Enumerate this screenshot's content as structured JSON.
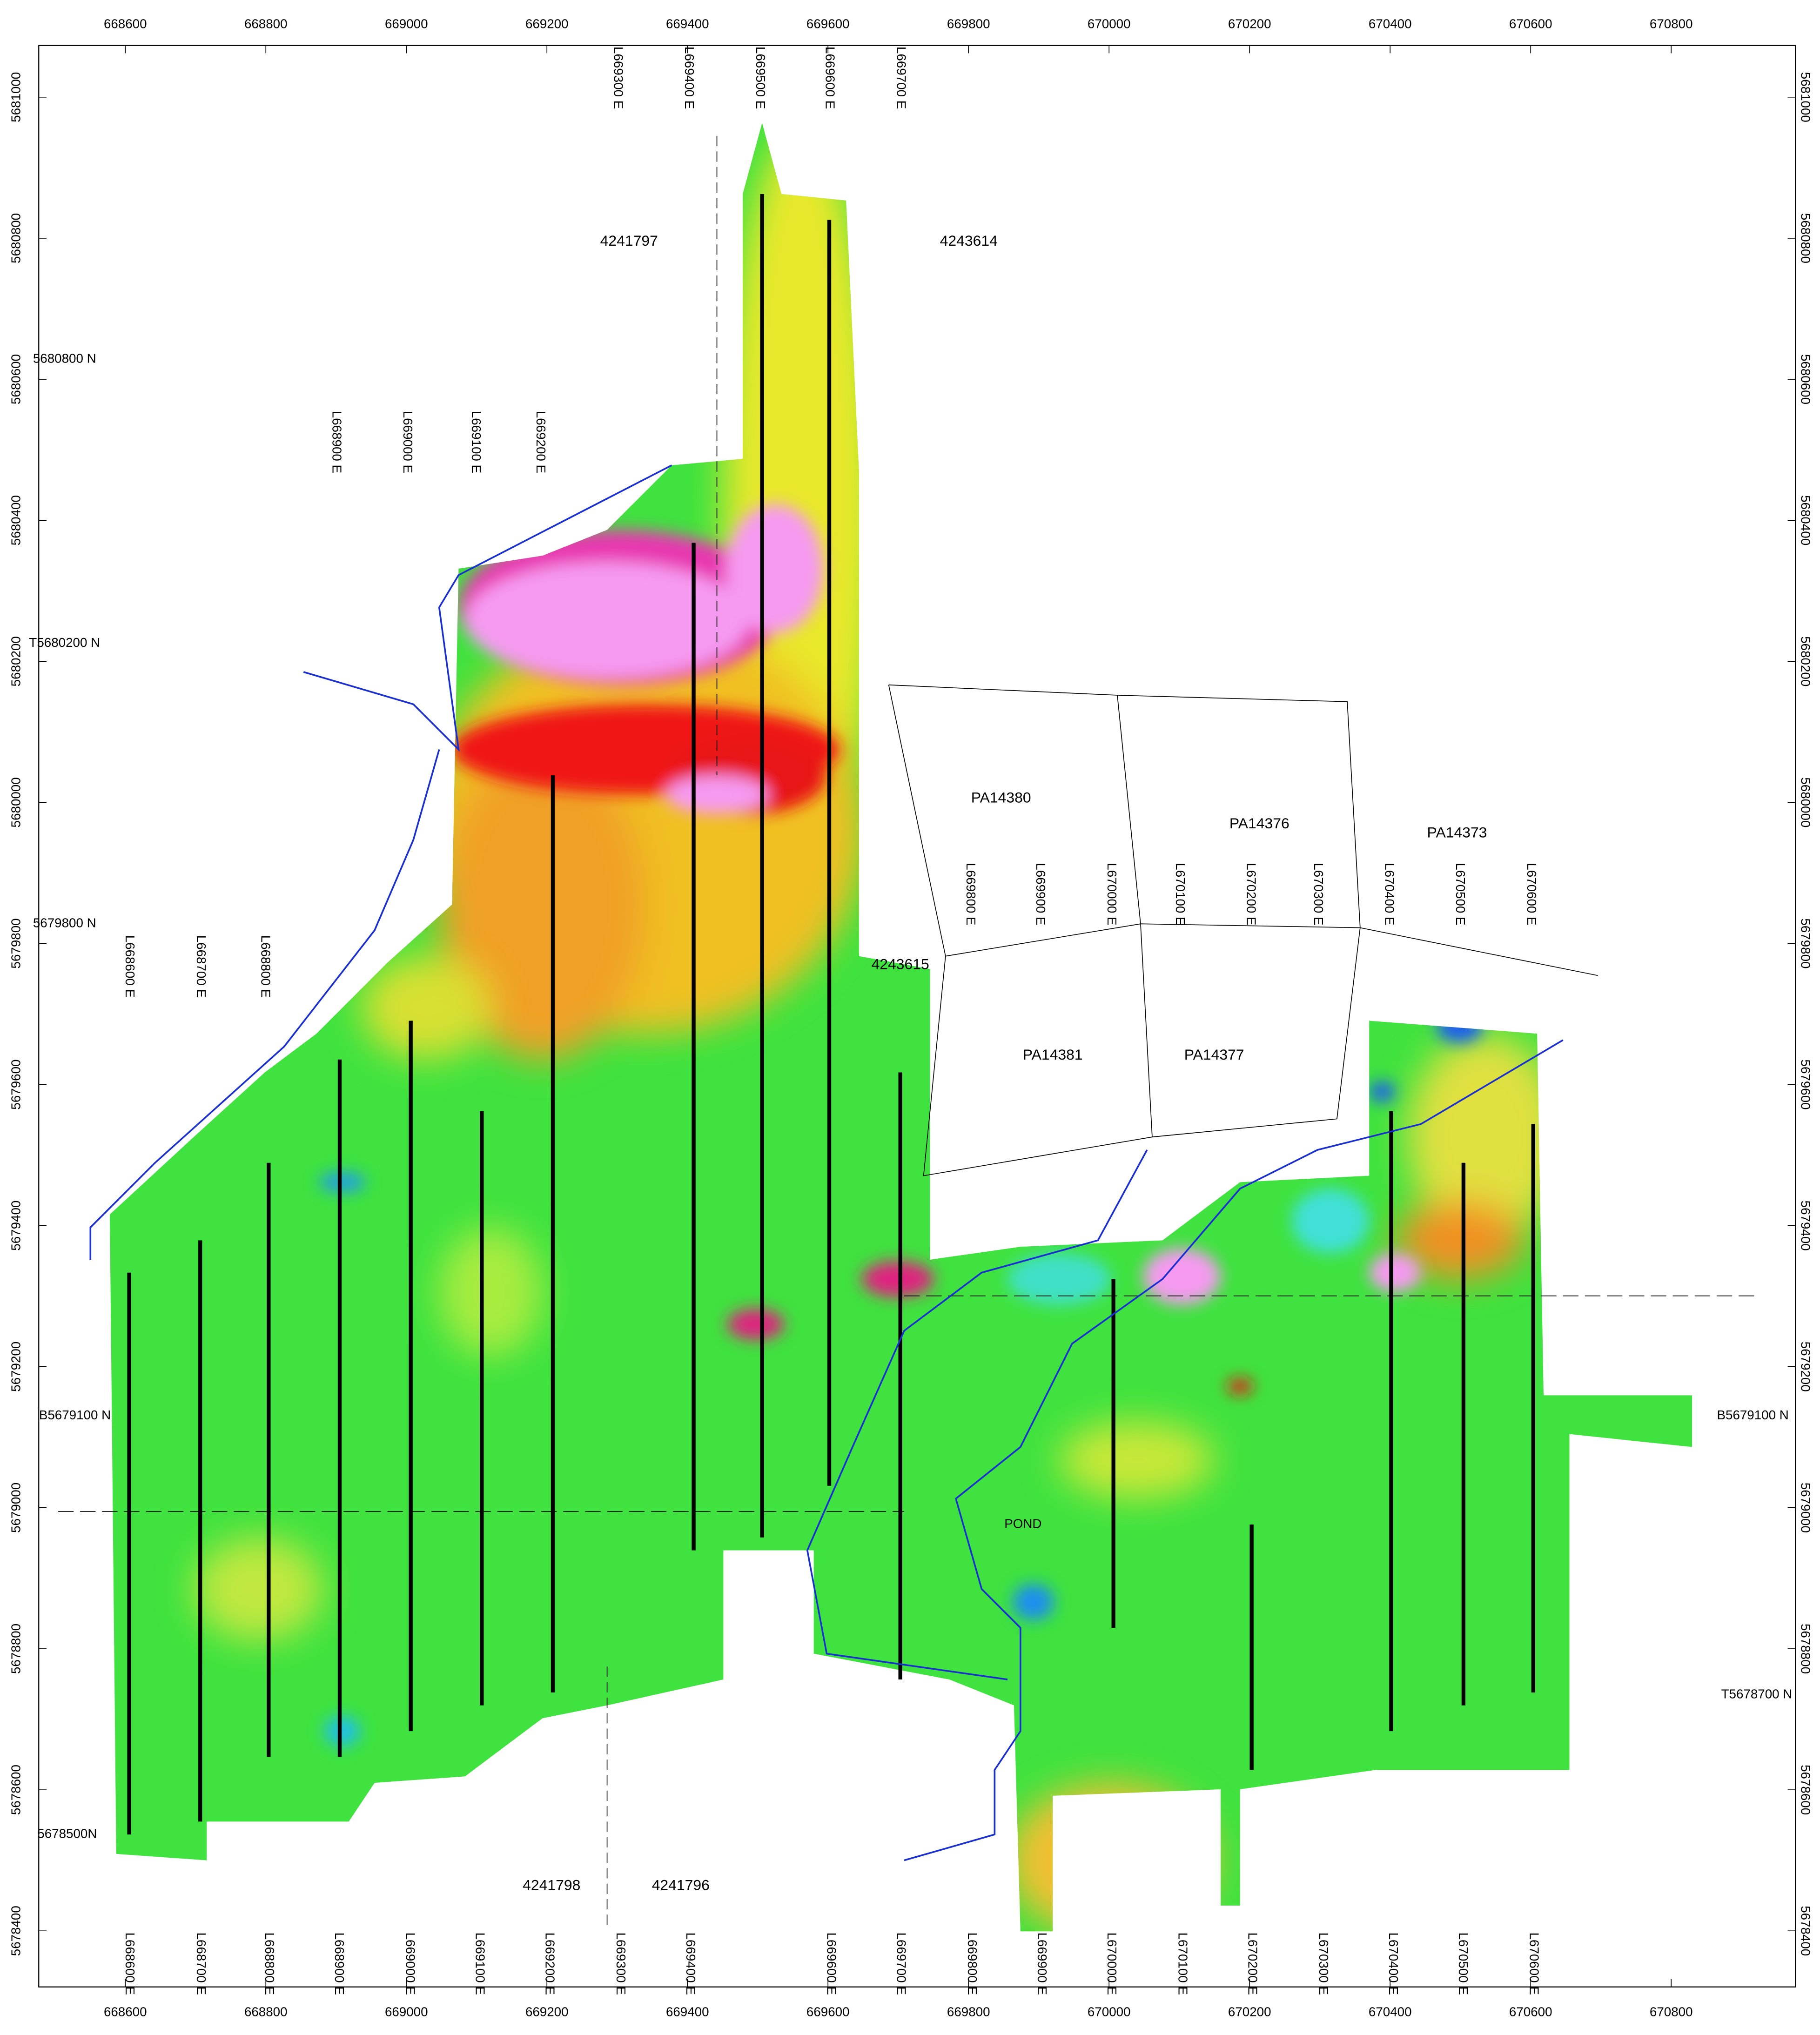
{
  "map": {
    "easting_ticks": [
      668600,
      668800,
      669000,
      669200,
      669400,
      669600,
      669800,
      670000,
      670200,
      670400,
      670600,
      670800
    ],
    "northing_ticks": [
      5678400,
      5678600,
      5678800,
      5679000,
      5679200,
      5679400,
      5679600,
      5679800,
      5680000,
      5680200,
      5680400,
      5680600,
      5680800,
      5681000
    ],
    "lines_north": [
      "L669300 E",
      "L669400 E",
      "L669500 E",
      "L669600 E",
      "L669700 E"
    ],
    "lines_upper": [
      "L668900 E",
      "L669000 E",
      "L669100 E",
      "L669200 E"
    ],
    "lines_west": [
      "L668600 E",
      "L668700 E",
      "L668800 E"
    ],
    "lines_east": [
      "L669800 E",
      "L669900 E",
      "L670000 E",
      "L670100 E",
      "L670200 E",
      "L670300 E",
      "L670400 E",
      "L670500 E",
      "L670600 E"
    ],
    "lines_bottom": [
      "L668600 E",
      "L668700 E",
      "L668800 E",
      "L668900 E",
      "L669000 E",
      "L669100 E",
      "L669200 E",
      "L669300 E",
      "L669400 E",
      "L669600 E",
      "L669700 E",
      "L669800 E",
      "L669900 E",
      "L670000 E",
      "L670100 E",
      "L670200 E",
      "L670300 E",
      "L670400 E",
      "L670500 E",
      "L670600 E"
    ],
    "grid_labels": {
      "n5680800": "5680800 N",
      "t5680200": "T5680200 N",
      "n5679800": "5679800 N",
      "b5679100_left": "B5679100 N",
      "b5679100_right": "B5679100 N",
      "t5678700": "T5678700 N",
      "n5678500": "5678500N"
    },
    "claims": [
      "4241797",
      "4243614",
      "4243615",
      "4241798",
      "4241796",
      "PA14380",
      "PA14376",
      "PA14373",
      "PA14381",
      "PA14377"
    ],
    "pond": "POND"
  }
}
